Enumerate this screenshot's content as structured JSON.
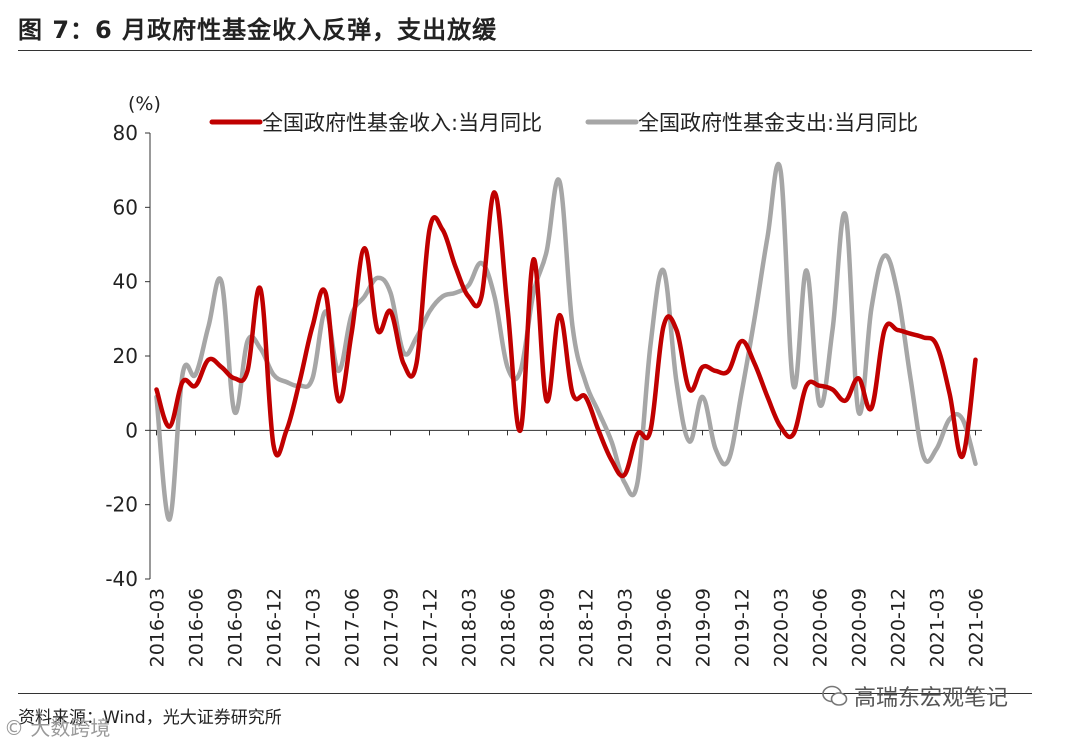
{
  "title": "图 7：6 月政府性基金收入反弹，支出放缓",
  "source": "资料来源：Wind，光大证券研究所",
  "watermark_right": "高瑞东宏观笔记",
  "watermark_left": "© 大数跨境",
  "colors": {
    "revenue": "#c00000",
    "expenditure": "#a6a6a6"
  },
  "chart_data": {
    "type": "line",
    "title": "6 月政府性基金收入反弹，支出放缓",
    "ylabel": "(%)",
    "ylim": [
      -40,
      80
    ],
    "yticks": [
      80,
      60,
      40,
      20,
      0,
      -20,
      -40
    ],
    "x": [
      "2016-03",
      "2016-04",
      "2016-05",
      "2016-06",
      "2016-07",
      "2016-08",
      "2016-09",
      "2016-10",
      "2016-11",
      "2016-12",
      "2017-01",
      "2017-02",
      "2017-03",
      "2017-04",
      "2017-05",
      "2017-06",
      "2017-07",
      "2017-08",
      "2017-09",
      "2017-10",
      "2017-11",
      "2017-12",
      "2018-01",
      "2018-02",
      "2018-03",
      "2018-04",
      "2018-05",
      "2018-06",
      "2018-07",
      "2018-08",
      "2018-09",
      "2018-10",
      "2018-11",
      "2018-12",
      "2019-01",
      "2019-02",
      "2019-03",
      "2019-04",
      "2019-05",
      "2019-06",
      "2019-07",
      "2019-08",
      "2019-09",
      "2019-10",
      "2019-11",
      "2019-12",
      "2020-01",
      "2020-02",
      "2020-03",
      "2020-04",
      "2020-05",
      "2020-06",
      "2020-07",
      "2020-08",
      "2020-09",
      "2020-10",
      "2020-11",
      "2020-12",
      "2021-01",
      "2021-02",
      "2021-03",
      "2021-04",
      "2021-05",
      "2021-06"
    ],
    "xticks": [
      "2016-03",
      "2016-06",
      "2016-09",
      "2016-12",
      "2017-03",
      "2017-06",
      "2017-09",
      "2017-12",
      "2018-03",
      "2018-06",
      "2018-09",
      "2018-12",
      "2019-03",
      "2019-06",
      "2019-09",
      "2019-12",
      "2020-03",
      "2020-06",
      "2020-09",
      "2020-12",
      "2021-03",
      "2021-06"
    ],
    "series": [
      {
        "name": "全国政府性基金收入:当月同比",
        "color": "#c00000",
        "values": [
          11,
          1,
          13,
          12,
          19,
          17,
          14,
          16,
          38,
          -4,
          0,
          13,
          28,
          37,
          8,
          26,
          49,
          27,
          32,
          18,
          18,
          54,
          54,
          44,
          36,
          36,
          64,
          33,
          0,
          46,
          8,
          31,
          10,
          9,
          0,
          -8,
          -12,
          -1,
          0,
          28,
          27,
          11,
          17,
          16,
          16,
          24,
          18,
          9,
          1,
          -1,
          12,
          12,
          11,
          8,
          14,
          6,
          27,
          27,
          26,
          25,
          23,
          10,
          -7,
          19
        ]
      },
      {
        "name": "全国政府性基金支出:当月同比",
        "color": "#a6a6a6",
        "values": [
          9,
          -24,
          15,
          15,
          28,
          40,
          5,
          24,
          22,
          15,
          13,
          12,
          14,
          32,
          16,
          31,
          36,
          41,
          37,
          21,
          25,
          32,
          36,
          37,
          39,
          45,
          36,
          17,
          16,
          37,
          48,
          67,
          28,
          13,
          5,
          -3,
          -14,
          -14,
          23,
          43,
          13,
          -3,
          9,
          -5,
          -8,
          10,
          30,
          52,
          70,
          12,
          43,
          7,
          27,
          58,
          5,
          33,
          47,
          37,
          14,
          -7,
          -5,
          3,
          3,
          -9
        ]
      }
    ]
  }
}
